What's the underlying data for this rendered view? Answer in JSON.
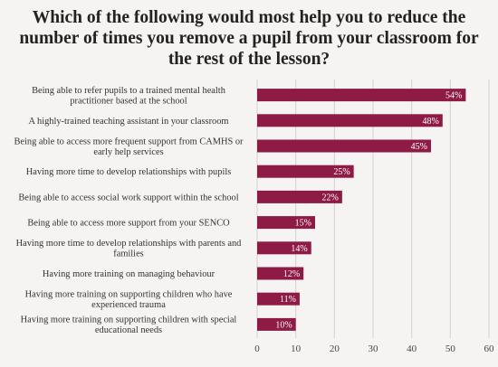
{
  "chart_data": {
    "type": "bar",
    "orientation": "horizontal",
    "title": "Which of the following would most help you to reduce the number of times you remove a pupil from your classroom for the rest of the lesson?",
    "categories": [
      [
        "Being able to refer pupils to a trained mental health",
        "practitioner based at the school"
      ],
      [
        "A highly-trained teaching assistant in your classroom"
      ],
      [
        "Being able to access more frequent support from CAMHS or",
        "early help services"
      ],
      [
        "Having more time to develop relationships with pupils"
      ],
      [
        "Being able to access social work support within the school"
      ],
      [
        "Being able to access more support from your SENCO"
      ],
      [
        "Having more time to develop relationships with parents and",
        "families"
      ],
      [
        "Having more training on managing behaviour"
      ],
      [
        "Having more training on supporting children who have",
        "experienced trauma"
      ],
      [
        "Having more training on supporting children with special",
        "educational needs"
      ]
    ],
    "values": [
      54,
      48,
      45,
      25,
      22,
      15,
      14,
      12,
      11,
      10
    ],
    "data_labels": [
      "54%",
      "48%",
      "45%",
      "25%",
      "22%",
      "15%",
      "14%",
      "12%",
      "11%",
      "10%"
    ],
    "xlim": [
      0,
      60
    ],
    "xticks": [
      0,
      10,
      20,
      30,
      40,
      50,
      60
    ],
    "grid": "vertical",
    "colors": {
      "bar": "#8e1a46",
      "grid": "#d5d0cc",
      "background": "#f6f4f2"
    }
  }
}
